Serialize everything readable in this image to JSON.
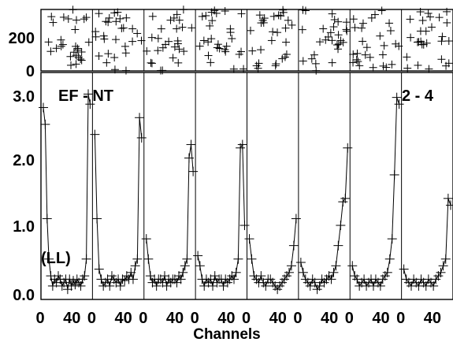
{
  "chart_data": {
    "type": "scatter",
    "xlabel": "Channels",
    "x_ticks": [
      "0",
      "40"
    ],
    "channels_per_panel": 64,
    "panel_count": 8,
    "annotations": {
      "top_left": "EF - NT",
      "top_right": "2 - 4",
      "bottom_left": "(LL)"
    },
    "top_panel": {
      "ylim": [
        0,
        350
      ],
      "y_ticks": [
        "0",
        "200"
      ],
      "description_values": "phase values scattered 0-350"
    },
    "main_panel": {
      "ylim": [
        0,
        3.3
      ],
      "y_ticks": [
        "0.0",
        "1.0",
        "2.0",
        "3.0"
      ],
      "series": [
        {
          "values": [
            2.85,
            2.6,
            1.2,
            0.6,
            0.35,
            0.2,
            0.3,
            0.25,
            0.35,
            0.3,
            0.2,
            0.25,
            0.3,
            0.15,
            0.3,
            0.2,
            0.28,
            0.22,
            0.3,
            0.25,
            0.2,
            0.3,
            0.35,
            0.6,
            3.05,
            2.9
          ]
        },
        {
          "values": [
            2.45,
            1.2,
            0.45,
            0.3,
            0.2,
            0.25,
            0.3,
            0.2,
            0.35,
            0.3,
            0.25,
            0.3,
            0.2,
            0.3,
            0.28,
            0.35,
            0.3,
            0.4,
            0.3,
            0.5,
            0.6,
            2.7,
            2.4
          ]
        },
        {
          "values": [
            0.9,
            0.6,
            0.35,
            0.25,
            0.3,
            0.2,
            0.3,
            0.3,
            0.25,
            0.35,
            0.2,
            0.3,
            0.25,
            0.3,
            0.3,
            0.25,
            0.35,
            0.3,
            0.4,
            0.5,
            0.6,
            2.1,
            2.3,
            1.9
          ]
        },
        {
          "values": [
            0.65,
            0.5,
            0.3,
            0.2,
            0.3,
            0.25,
            0.3,
            0.2,
            0.35,
            0.25,
            0.3,
            0.3,
            0.2,
            0.3,
            0.25,
            0.3,
            0.35,
            0.3,
            0.4,
            0.6,
            2.25,
            2.3,
            1.1
          ]
        },
        {
          "values": [
            0.9,
            0.6,
            0.35,
            0.3,
            0.25,
            0.35,
            0.25,
            0.2,
            0.3,
            0.3,
            0.25,
            0.2,
            0.15,
            0.2,
            0.25,
            0.3,
            0.35,
            0.4,
            0.5,
            0.8,
            1.2
          ]
        },
        {
          "values": [
            0.55,
            0.4,
            0.3,
            0.25,
            0.2,
            0.3,
            0.25,
            0.15,
            0.2,
            0.3,
            0.25,
            0.3,
            0.35,
            0.3,
            0.4,
            0.5,
            0.8,
            1.1,
            1.45,
            1.5,
            2.25
          ]
        },
        {
          "values": [
            0.5,
            0.35,
            0.3,
            0.2,
            0.25,
            0.3,
            0.2,
            0.25,
            0.3,
            0.2,
            0.3,
            0.25,
            0.2,
            0.3,
            0.35,
            0.4,
            0.6,
            0.9,
            1.85,
            3.0,
            2.9
          ]
        },
        {
          "values": [
            0.45,
            0.3,
            0.25,
            0.2,
            0.3,
            0.25,
            0.2,
            0.3,
            0.25,
            0.2,
            0.3,
            0.25,
            0.2,
            0.3,
            0.35,
            0.4,
            0.5,
            0.6,
            1.5,
            1.4
          ]
        }
      ]
    },
    "grid": false
  }
}
